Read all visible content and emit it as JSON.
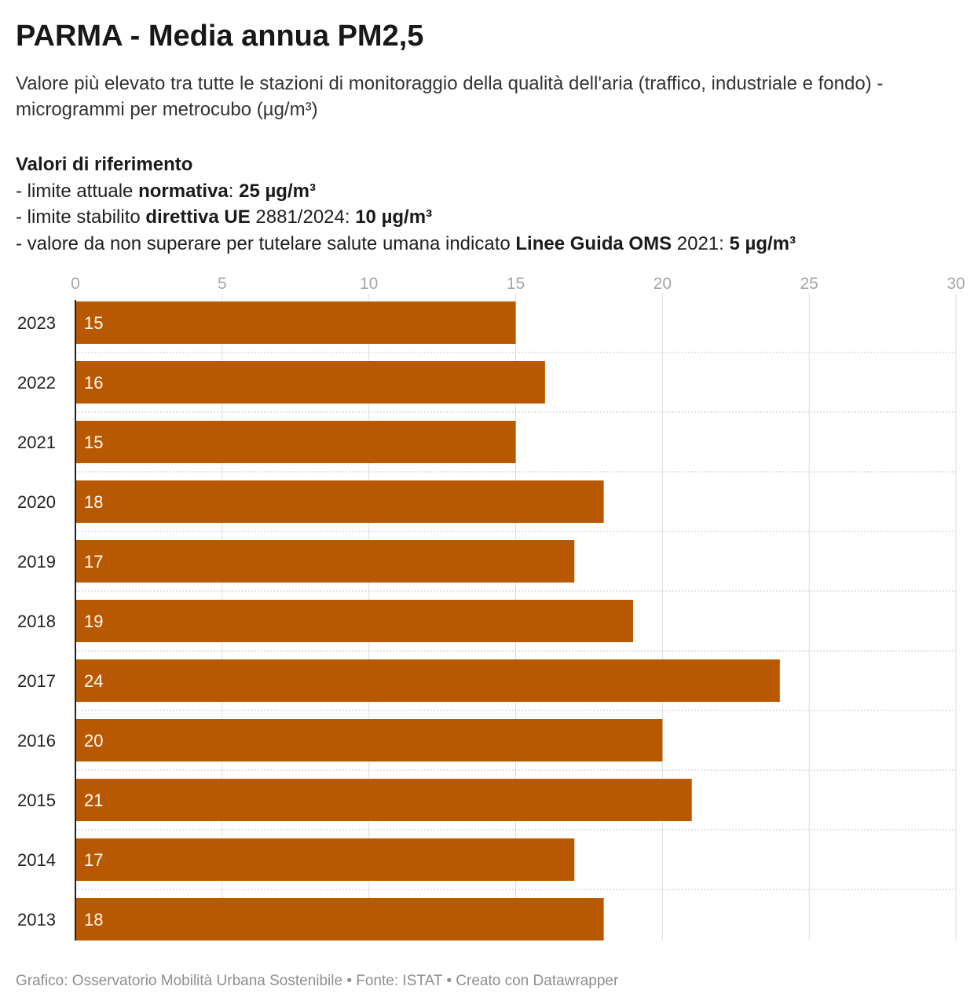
{
  "title": "PARMA - Media annua PM2,5",
  "subtitle": "Valore più elevato tra tutte le stazioni di monitoraggio della qualità dell'aria (traffico, industriale e fondo) - microgrammi per metrocubo (µg/m³)",
  "references": {
    "heading": "Valori di riferimento",
    "line1": {
      "prefix": "- limite attuale ",
      "bold1": "normativa",
      "middle": ": ",
      "bold2": "25 µg/m³"
    },
    "line2": {
      "prefix": "- limite stabilito ",
      "bold1": "direttiva UE",
      "middle": " 2881/2024: ",
      "bold2": "10 µg/m³"
    },
    "line3": {
      "prefix": "- valore da non superare per tutelare salute umana indicato ",
      "bold1": "Linee Guida OMS",
      "middle": " 2021: ",
      "bold2": "5 µg/m³"
    }
  },
  "chart_data": {
    "type": "bar",
    "orientation": "horizontal",
    "categories": [
      "2023",
      "2022",
      "2021",
      "2020",
      "2019",
      "2018",
      "2017",
      "2016",
      "2015",
      "2014",
      "2013"
    ],
    "values": [
      15,
      16,
      15,
      18,
      17,
      19,
      24,
      20,
      21,
      17,
      18
    ],
    "xlim": [
      0,
      30
    ],
    "x_ticks": [
      0,
      5,
      10,
      15,
      20,
      25,
      30
    ],
    "x_tick_labels": [
      "0",
      "5",
      "10",
      "15",
      "20",
      "25",
      "30"
    ],
    "x_axis_position": "top",
    "grid": true,
    "bar_color": "#b85800",
    "label_color": "#ffffff",
    "title": "PARMA - Media annua PM2,5",
    "xlabel": "",
    "ylabel": ""
  },
  "footer": "Grafico: Osservatorio Mobilità Urbana Sostenibile • Fonte: ISTAT • Creato con Datawrapper"
}
